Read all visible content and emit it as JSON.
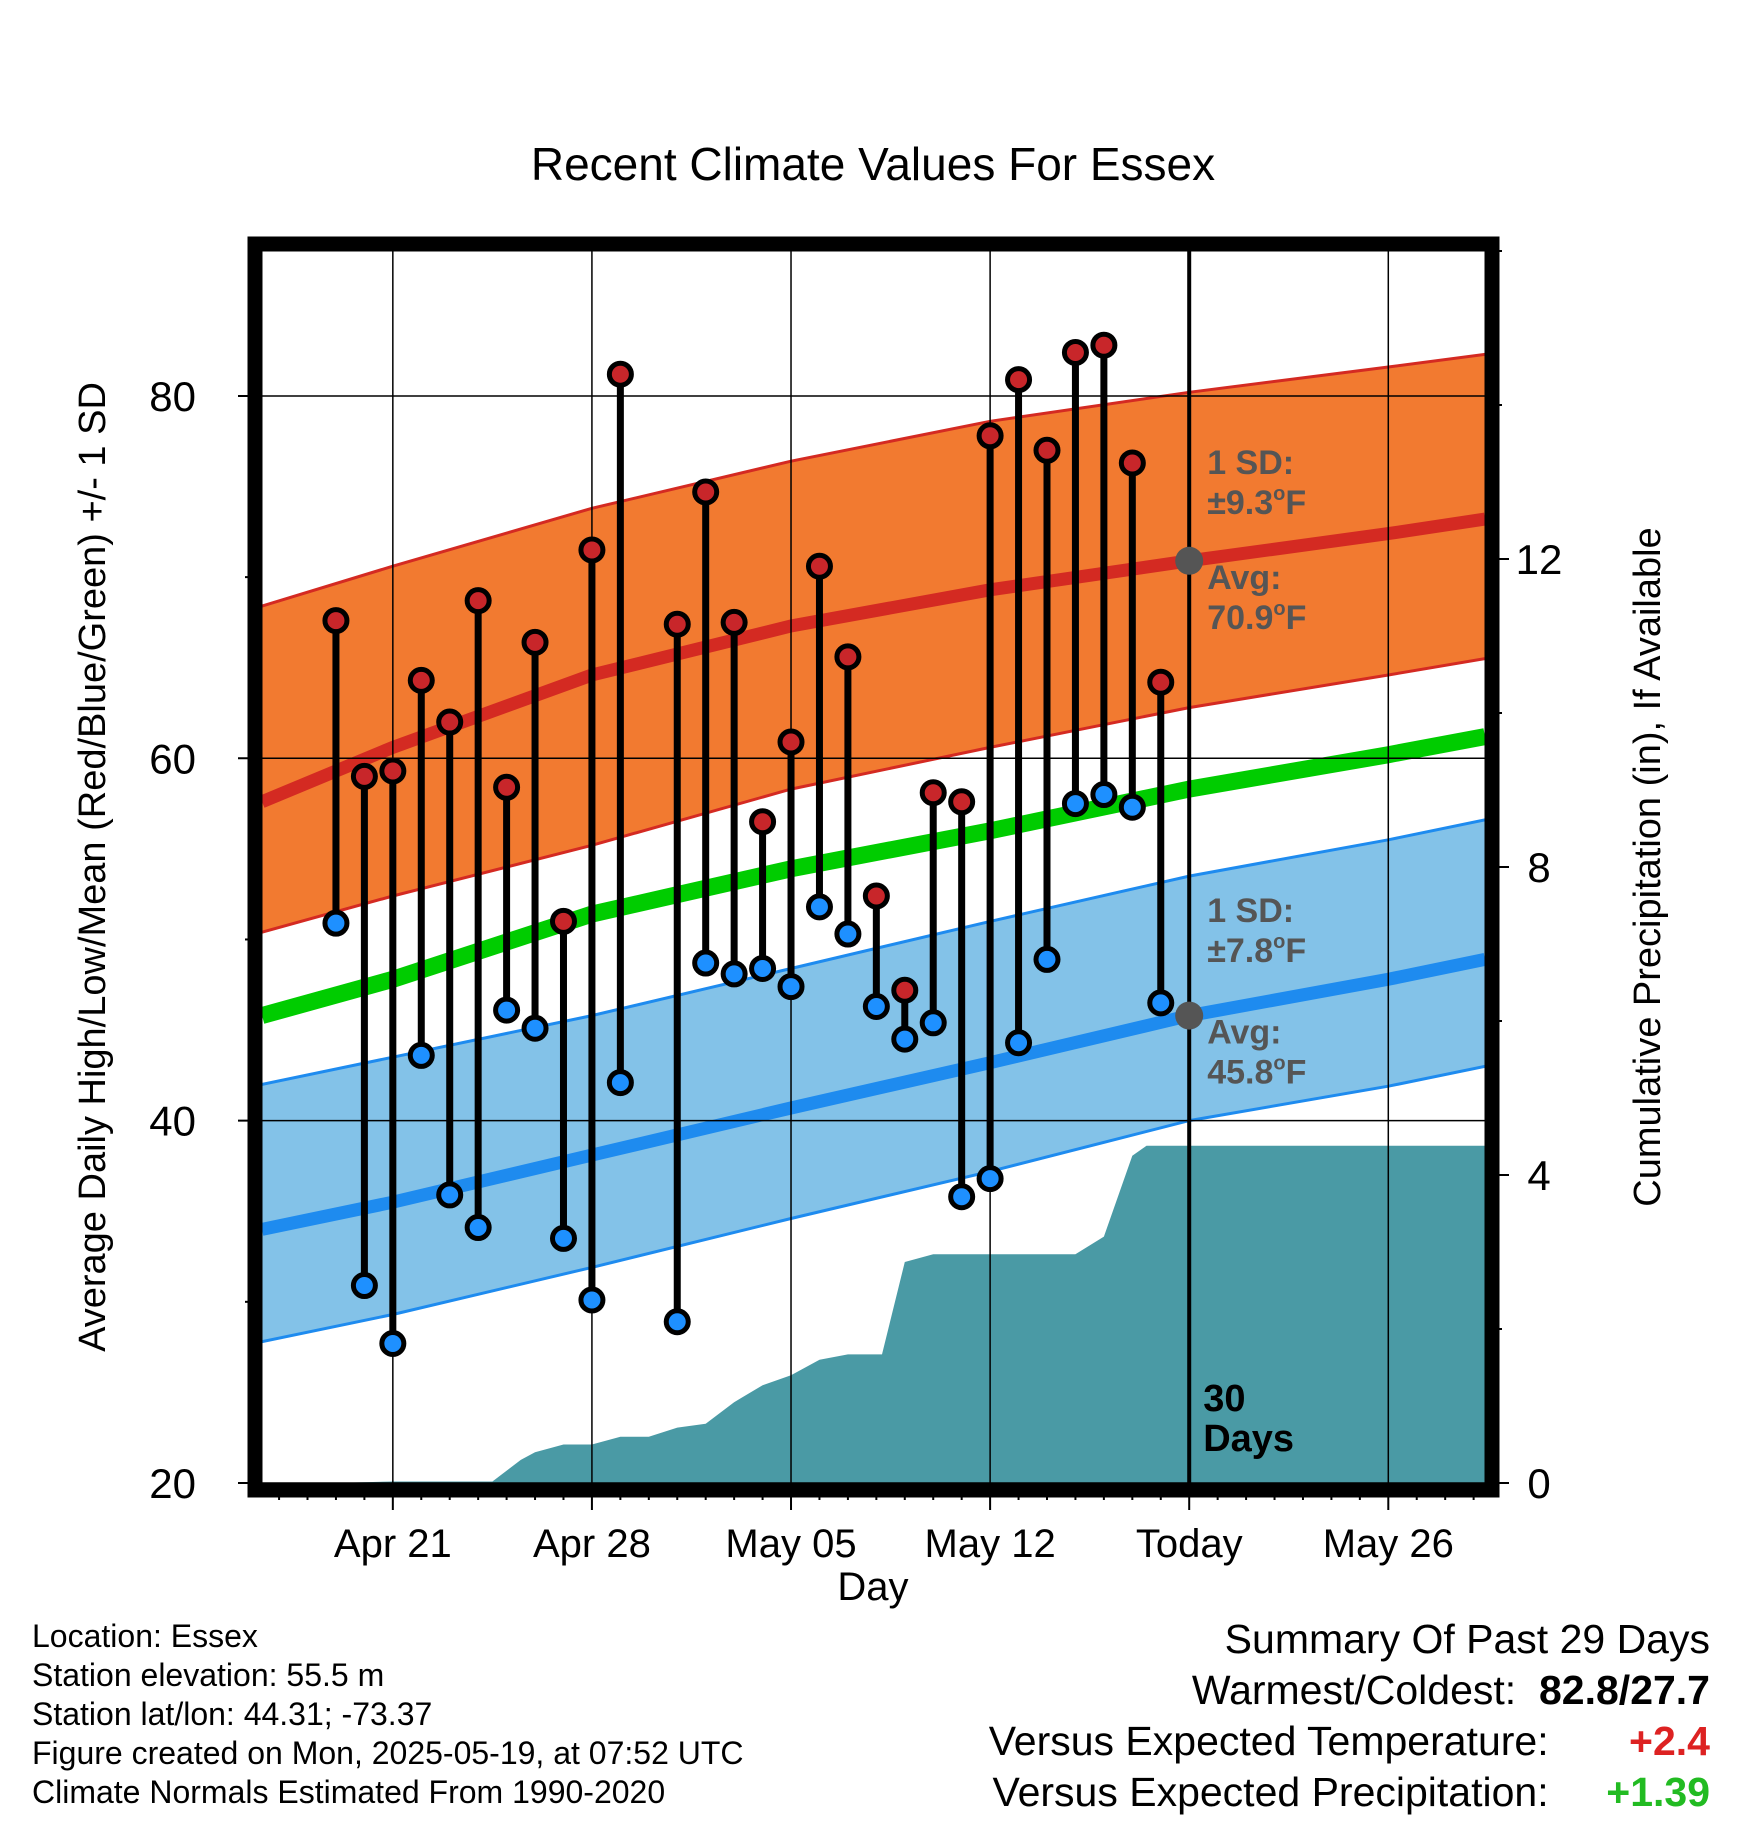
{
  "chart_data": {
    "type": "line",
    "title": "Recent Climate Values For Essex",
    "xlabel": "Day",
    "ylabel": "Average Daily High/Low/Mean (Red/Blue/Green) +/- 1 SD",
    "y2label": "Cumulative Precipitation (in), If Available",
    "ylim": [
      20,
      88
    ],
    "y2lim": [
      0,
      16
    ],
    "xlim": [
      -32.6,
      10.4
    ],
    "x_unit": "days relative to Today (2025-05-19)",
    "x_ticks": [
      {
        "label": "Apr 21",
        "day": -28
      },
      {
        "label": "Apr 28",
        "day": -21
      },
      {
        "label": "May 05",
        "day": -14
      },
      {
        "label": "May 12",
        "day": -7
      },
      {
        "label": "Today",
        "day": 0
      },
      {
        "label": "May 26",
        "day": 7
      }
    ],
    "y_ticks": [
      20,
      40,
      60,
      80
    ],
    "y2_ticks": [
      0,
      4,
      8,
      12
    ],
    "grid": true,
    "colors": {
      "high_band": "#f27a30",
      "high_band_edge": "#d42a22",
      "high_mean": "#d42a22",
      "low_band": "#83c2e8",
      "low_band_edge": "#1e8bef",
      "low_mean": "#1e8bef",
      "mean_line": "#00cc00",
      "precip": "#4a9aa5",
      "high_dot": "#c8262a",
      "low_dot": "#1e90ff",
      "annotation": "#555555"
    },
    "normal_days": [
      -32.6,
      -28,
      -21,
      -14,
      -7,
      0,
      7,
      10.4
    ],
    "normal_high": [
      57.6,
      60.6,
      64.6,
      67.3,
      69.3,
      70.9,
      72.4,
      73.2
    ],
    "normal_high_upper": [
      68.4,
      70.6,
      73.8,
      76.4,
      78.6,
      80.2,
      81.6,
      82.3
    ],
    "normal_high_lower": [
      50.4,
      52.4,
      55.2,
      58.3,
      60.6,
      62.8,
      64.6,
      65.5
    ],
    "normal_low": [
      34.0,
      35.5,
      38.1,
      40.7,
      43.2,
      45.8,
      47.8,
      48.9
    ],
    "normal_low_upper": [
      42.0,
      43.5,
      45.8,
      48.4,
      51.0,
      53.5,
      55.5,
      56.6
    ],
    "normal_low_lower": [
      27.8,
      29.3,
      31.9,
      34.6,
      37.2,
      40.0,
      41.9,
      43.0
    ],
    "normal_mean": [
      45.8,
      47.8,
      51.4,
      53.9,
      56.0,
      58.3,
      60.2,
      61.2
    ],
    "daily_days": [
      -30,
      -29,
      -28,
      -27,
      -26,
      -25,
      -24,
      -23,
      -22,
      -21,
      -20,
      -18,
      -17,
      -16,
      -15,
      -14,
      -13,
      -12,
      -11,
      -10,
      -9,
      -8,
      -7,
      -6,
      -5,
      -4,
      -3,
      -2,
      -1
    ],
    "daily_high": [
      67.6,
      59.0,
      59.3,
      64.3,
      62.0,
      68.7,
      58.4,
      66.4,
      51.0,
      71.5,
      81.2,
      67.4,
      74.7,
      67.5,
      56.5,
      60.9,
      70.6,
      65.6,
      52.4,
      47.2,
      58.1,
      57.6,
      77.8,
      80.9,
      77.0,
      82.4,
      82.8,
      76.3,
      64.2
    ],
    "daily_low": [
      50.9,
      30.9,
      27.7,
      43.6,
      35.9,
      34.1,
      46.1,
      45.1,
      33.5,
      30.1,
      42.1,
      28.9,
      48.7,
      48.1,
      48.4,
      47.4,
      51.8,
      50.3,
      46.3,
      44.5,
      45.4,
      35.8,
      36.8,
      44.3,
      48.9,
      57.5,
      58.0,
      57.3,
      46.5
    ],
    "precip_days": [
      -32.6,
      -30,
      -28,
      -24.5,
      -23.5,
      -23,
      -22,
      -21,
      -20,
      -19,
      -18,
      -17,
      -16,
      -15,
      -14,
      -13,
      -12,
      -11,
      -10.8,
      -10,
      -9,
      -8,
      -7,
      -6,
      -5,
      -4,
      -3,
      -2,
      -1.5,
      -1,
      10.4
    ],
    "precip_cum": [
      0.0,
      0.0,
      0.02,
      0.02,
      0.3,
      0.4,
      0.5,
      0.5,
      0.6,
      0.6,
      0.72,
      0.77,
      1.05,
      1.27,
      1.4,
      1.6,
      1.67,
      1.67,
      1.67,
      2.87,
      2.97,
      2.97,
      2.97,
      2.97,
      2.97,
      2.97,
      3.2,
      4.25,
      4.38,
      4.38,
      4.38
    ],
    "today_day": 0,
    "today_label_line1": "30",
    "today_label_line2": "Days",
    "high_annotation": {
      "sd_line1": "1 SD:",
      "sd_line2": "±9.3",
      "sd_unit": "F",
      "avg_line1": "Avg:",
      "avg_line2": "70.9",
      "avg_unit": "F",
      "avg_value": 70.9
    },
    "low_annotation": {
      "sd_line1": "1 SD:",
      "sd_line2": "±7.8",
      "sd_unit": "F",
      "avg_line1": "Avg:",
      "avg_line2": "45.8",
      "avg_unit": "F",
      "avg_value": 45.8
    },
    "degree_symbol": "o"
  },
  "footer": {
    "location": "Location: Essex",
    "elevation": "Station elevation: 55.5 m",
    "latlon": "Station lat/lon: 44.31; -73.37",
    "created": "Figure created on Mon, 2025-05-19, at 07:52 UTC",
    "normals": "Climate Normals Estimated From 1990-2020"
  },
  "summary": {
    "title": "Summary Of Past 29 Days",
    "warm_cold_label": "Warmest/Coldest:",
    "warmest": "82.8",
    "separator": "/",
    "coldest": "27.7",
    "temp_label": "Versus Expected Temperature:",
    "temp_value": "+2.4",
    "temp_color": "#dd2222",
    "precip_label": "Versus Expected Precipitation:",
    "precip_value": "+1.39",
    "precip_color": "#22bb22"
  }
}
